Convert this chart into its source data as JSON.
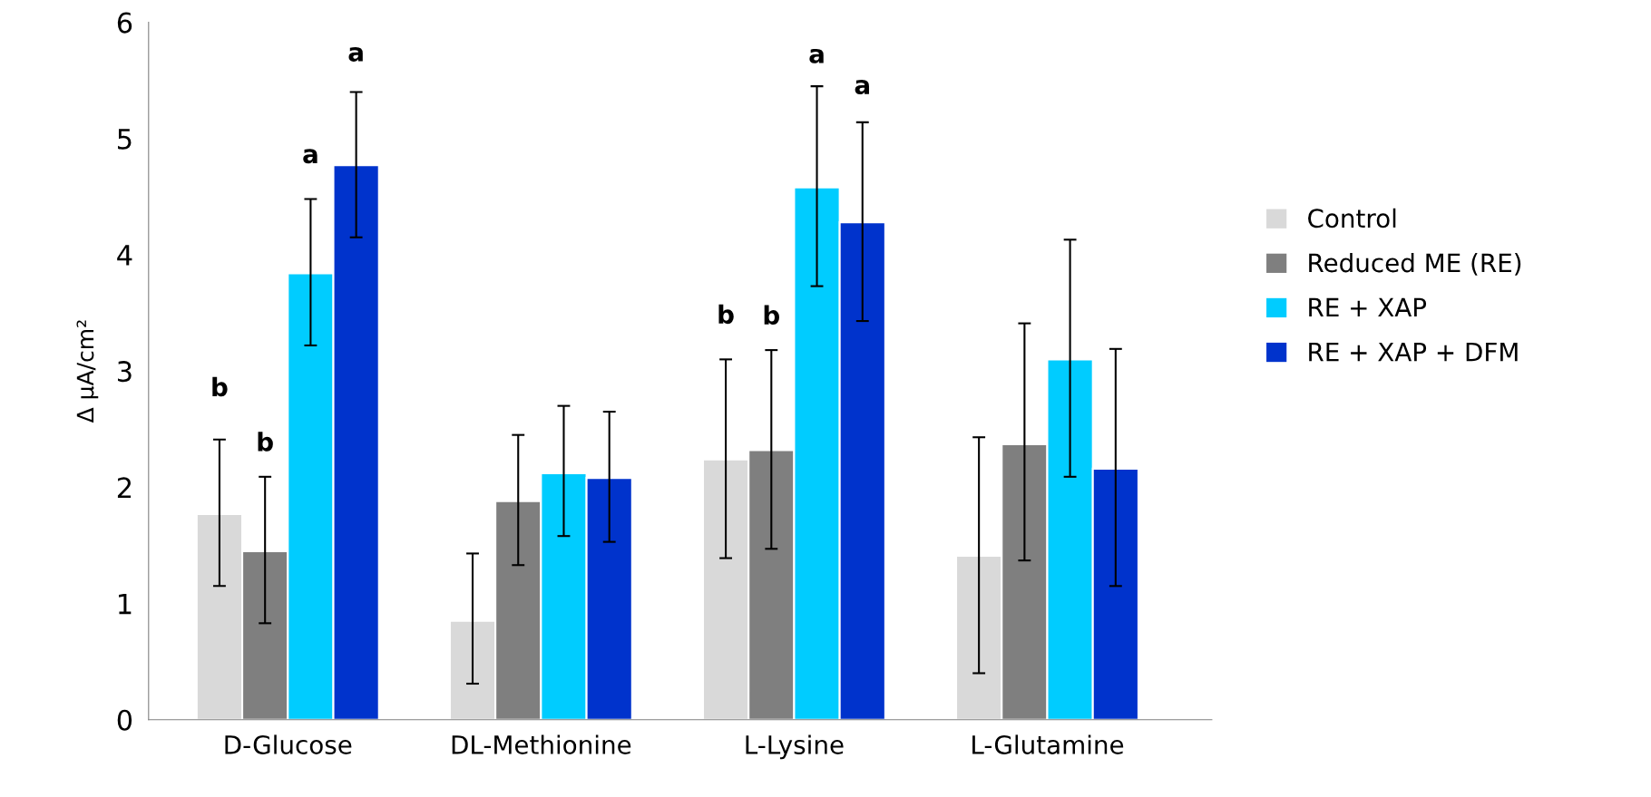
{
  "chart_data": {
    "type": "bar",
    "ylabel": "Δ µA/cm²",
    "categories": [
      "D-Glucose",
      "DL-Methionine",
      "L-Lysine",
      "L-Glutamine"
    ],
    "ylim": [
      0,
      6
    ],
    "yticks": [
      0,
      1,
      2,
      3,
      4,
      5,
      6
    ],
    "grid": false,
    "legend": "right",
    "series": [
      {
        "name": "Control",
        "color": "#d9d9d9",
        "values": [
          1.77,
          0.85,
          2.24,
          1.41
        ],
        "errors": [
          [
            1.15,
            2.41
          ],
          [
            0.31,
            1.43
          ],
          [
            1.39,
            3.1
          ],
          [
            0.4,
            2.43
          ]
        ]
      },
      {
        "name": "Reduced ME (RE)",
        "color": "#7f7f7f",
        "values": [
          1.45,
          1.88,
          2.32,
          2.37
        ],
        "errors": [
          [
            0.83,
            2.09
          ],
          [
            1.33,
            2.45
          ],
          [
            1.47,
            3.18
          ],
          [
            1.37,
            3.41
          ]
        ]
      },
      {
        "name": "RE + XAP",
        "color": "#00ccff",
        "values": [
          3.84,
          2.12,
          4.58,
          3.1
        ],
        "errors": [
          [
            3.22,
            4.48
          ],
          [
            1.58,
            2.7
          ],
          [
            3.73,
            5.45
          ],
          [
            2.09,
            4.13
          ]
        ]
      },
      {
        "name": "RE + XAP + DFM",
        "color": "#0033cc",
        "values": [
          4.77,
          2.08,
          4.28,
          2.16
        ],
        "errors": [
          [
            4.15,
            5.4
          ],
          [
            1.53,
            2.65
          ],
          [
            3.43,
            5.14
          ],
          [
            1.15,
            3.19
          ]
        ]
      }
    ],
    "annotations": [
      "b",
      "b",
      "a",
      "a",
      "b",
      "b",
      "a",
      "a"
    ]
  }
}
